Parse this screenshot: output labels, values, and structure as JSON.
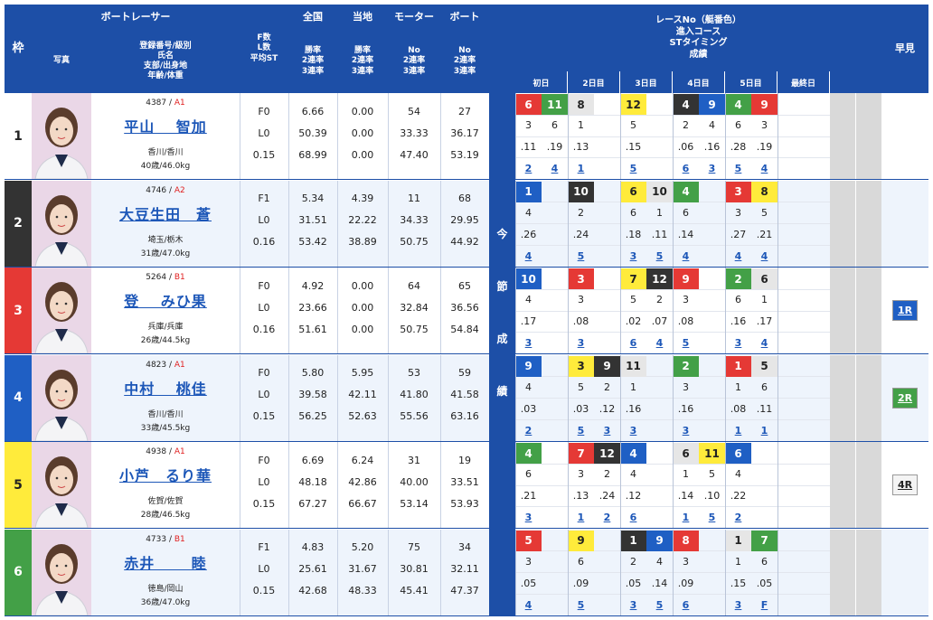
{
  "headers": {
    "waku": "枠",
    "racer": "ボートレーサー",
    "photo": "写真",
    "info": [
      "登録番号/級別",
      "氏名",
      "支部/出身地",
      "年齢/体重"
    ],
    "fl": [
      "F数",
      "L数",
      "平均ST"
    ],
    "zenkoku": "全国",
    "touchi": "当地",
    "motor": "モーター",
    "boat": "ボート",
    "rates": [
      "勝率",
      "2連率",
      "3連率"
    ],
    "mrates": [
      "No",
      "2連率",
      "3連率"
    ],
    "race": [
      "レースNo（艇番色）",
      "進入コース",
      "STタイミング",
      "成績"
    ],
    "days": [
      "初日",
      "2日目",
      "3日目",
      "4日目",
      "5日目",
      "最終日"
    ],
    "hayami": "早見",
    "konsetsu": [
      "今",
      "節",
      "成",
      "績"
    ]
  },
  "colors": {
    "w1": "#ffffff",
    "w2": "#333333",
    "w3": "#e53935",
    "w4": "#1f5fc4",
    "w5": "#ffeb3b",
    "w6": "#43a047"
  },
  "racers": [
    {
      "waku": "1",
      "reg": "4387",
      "cls": "A1",
      "name": "平山　 智加",
      "branch": "香川/香川",
      "age": "40歳/46.0kg",
      "fl": [
        "F0",
        "L0",
        "0.15"
      ],
      "zen": [
        "6.66",
        "50.39",
        "68.99"
      ],
      "tou": [
        "0.00",
        "0.00",
        "0.00"
      ],
      "mot": [
        "54",
        "33.33",
        "47.40"
      ],
      "boa": [
        "27",
        "36.17",
        "53.19"
      ],
      "races": [
        {
          "r": "6",
          "c": "r"
        },
        {
          "r": "11",
          "c": "g"
        },
        {
          "r": "8",
          "c": "l"
        },
        null,
        {
          "r": "12",
          "c": "y"
        },
        null,
        {
          "r": "4",
          "c": "d"
        },
        {
          "r": "9",
          "c": "b"
        },
        {
          "r": "4",
          "c": "g"
        },
        {
          "r": "9",
          "c": "r"
        },
        null,
        null
      ],
      "crs": [
        "3",
        "6",
        "1",
        "",
        "5",
        "",
        "2",
        "4",
        "6",
        "3",
        "",
        ""
      ],
      "st": [
        ".11",
        ".19",
        ".13",
        "",
        ".15",
        "",
        ".06",
        ".16",
        ".28",
        ".19",
        "",
        ""
      ],
      "res": [
        "2",
        "4",
        "1",
        "",
        "5",
        "",
        "6",
        "3",
        "5",
        "4",
        "",
        ""
      ],
      "hay": ""
    },
    {
      "waku": "2",
      "reg": "4746",
      "cls": "A2",
      "name": "大豆生田　蒼",
      "branch": "埼玉/栃木",
      "age": "31歳/47.0kg",
      "fl": [
        "F1",
        "L0",
        "0.16"
      ],
      "zen": [
        "5.34",
        "31.51",
        "53.42"
      ],
      "tou": [
        "4.39",
        "22.22",
        "38.89"
      ],
      "mot": [
        "11",
        "34.33",
        "50.75"
      ],
      "boa": [
        "68",
        "29.95",
        "44.92"
      ],
      "races": [
        {
          "r": "1",
          "c": "b"
        },
        null,
        {
          "r": "10",
          "c": "d"
        },
        null,
        {
          "r": "6",
          "c": "y"
        },
        {
          "r": "10",
          "c": "l"
        },
        {
          "r": "4",
          "c": "g"
        },
        null,
        {
          "r": "3",
          "c": "r"
        },
        {
          "r": "8",
          "c": "y"
        },
        null,
        null
      ],
      "crs": [
        "4",
        "",
        "2",
        "",
        "6",
        "1",
        "6",
        "",
        "3",
        "5",
        "",
        ""
      ],
      "st": [
        ".26",
        "",
        ".24",
        "",
        ".18",
        ".11",
        ".14",
        "",
        ".27",
        ".21",
        "",
        ""
      ],
      "res": [
        "4",
        "",
        "5",
        "",
        "3",
        "5",
        "4",
        "",
        "4",
        "4",
        "",
        ""
      ],
      "hay": ""
    },
    {
      "waku": "3",
      "reg": "5264",
      "cls": "B1",
      "name": "登　 みひ果",
      "branch": "兵庫/兵庫",
      "age": "26歳/44.5kg",
      "fl": [
        "F0",
        "L0",
        "0.16"
      ],
      "zen": [
        "4.92",
        "23.66",
        "51.61"
      ],
      "tou": [
        "0.00",
        "0.00",
        "0.00"
      ],
      "mot": [
        "64",
        "32.84",
        "50.75"
      ],
      "boa": [
        "65",
        "36.56",
        "54.84"
      ],
      "races": [
        {
          "r": "10",
          "c": "b"
        },
        null,
        {
          "r": "3",
          "c": "r"
        },
        null,
        {
          "r": "7",
          "c": "y"
        },
        {
          "r": "12",
          "c": "d"
        },
        {
          "r": "9",
          "c": "r"
        },
        null,
        {
          "r": "2",
          "c": "g"
        },
        {
          "r": "6",
          "c": "l"
        },
        null,
        null
      ],
      "crs": [
        "4",
        "",
        "3",
        "",
        "5",
        "2",
        "3",
        "",
        "6",
        "1",
        "",
        ""
      ],
      "st": [
        ".17",
        "",
        ".08",
        "",
        ".02",
        ".07",
        ".08",
        "",
        ".16",
        ".17",
        "",
        ""
      ],
      "res": [
        "3",
        "",
        "3",
        "",
        "6",
        "4",
        "5",
        "",
        "3",
        "4",
        "",
        ""
      ],
      "hay": "1R",
      "hayc": "#1f5fc4"
    },
    {
      "waku": "4",
      "reg": "4823",
      "cls": "A1",
      "name": "中村　 桃佳",
      "branch": "香川/香川",
      "age": "33歳/45.5kg",
      "fl": [
        "F0",
        "L0",
        "0.15"
      ],
      "zen": [
        "5.80",
        "39.58",
        "56.25"
      ],
      "tou": [
        "5.95",
        "42.11",
        "52.63"
      ],
      "mot": [
        "53",
        "41.80",
        "55.56"
      ],
      "boa": [
        "59",
        "41.58",
        "63.16"
      ],
      "races": [
        {
          "r": "9",
          "c": "b"
        },
        null,
        {
          "r": "3",
          "c": "y"
        },
        {
          "r": "9",
          "c": "d"
        },
        {
          "r": "11",
          "c": "l"
        },
        null,
        {
          "r": "2",
          "c": "g"
        },
        null,
        {
          "r": "1",
          "c": "r"
        },
        {
          "r": "5",
          "c": "l"
        },
        null,
        null
      ],
      "crs": [
        "4",
        "",
        "5",
        "2",
        "1",
        "",
        "3",
        "",
        "1",
        "6",
        "",
        ""
      ],
      "st": [
        ".03",
        "",
        ".03",
        ".12",
        ".16",
        "",
        ".16",
        "",
        ".08",
        ".11",
        "",
        ""
      ],
      "res": [
        "2",
        "",
        "5",
        "3",
        "3",
        "",
        "3",
        "",
        "1",
        "1",
        "",
        ""
      ],
      "hay": "2R",
      "hayc": "#43a047"
    },
    {
      "waku": "5",
      "reg": "4938",
      "cls": "A1",
      "name": "小芦　るり華",
      "branch": "佐賀/佐賀",
      "age": "28歳/46.5kg",
      "fl": [
        "F0",
        "L0",
        "0.15"
      ],
      "zen": [
        "6.69",
        "48.18",
        "67.27"
      ],
      "tou": [
        "6.24",
        "42.86",
        "66.67"
      ],
      "mot": [
        "31",
        "40.00",
        "53.14"
      ],
      "boa": [
        "19",
        "33.51",
        "53.93"
      ],
      "races": [
        {
          "r": "4",
          "c": "g"
        },
        null,
        {
          "r": "7",
          "c": "r"
        },
        {
          "r": "12",
          "c": "d"
        },
        {
          "r": "4",
          "c": "b"
        },
        null,
        {
          "r": "6",
          "c": "l"
        },
        {
          "r": "11",
          "c": "y"
        },
        {
          "r": "6",
          "c": "b"
        },
        null,
        null,
        null
      ],
      "crs": [
        "6",
        "",
        "3",
        "2",
        "4",
        "",
        "1",
        "5",
        "4",
        "",
        "",
        ""
      ],
      "st": [
        ".21",
        "",
        ".13",
        ".24",
        ".12",
        "",
        ".14",
        ".10",
        ".22",
        "",
        "",
        ""
      ],
      "res": [
        "3",
        "",
        "1",
        "2",
        "6",
        "",
        "1",
        "5",
        "2",
        "",
        "",
        ""
      ],
      "hay": "4R",
      "hayc": "#222222"
    },
    {
      "waku": "6",
      "reg": "4733",
      "cls": "B1",
      "name": "赤井　　 睦",
      "branch": "徳島/岡山",
      "age": "36歳/47.0kg",
      "fl": [
        "F1",
        "L0",
        "0.15"
      ],
      "zen": [
        "4.83",
        "25.61",
        "42.68"
      ],
      "tou": [
        "5.20",
        "31.67",
        "48.33"
      ],
      "mot": [
        "75",
        "30.81",
        "45.41"
      ],
      "boa": [
        "34",
        "32.11",
        "47.37"
      ],
      "races": [
        {
          "r": "5",
          "c": "r"
        },
        null,
        {
          "r": "9",
          "c": "y"
        },
        null,
        {
          "r": "1",
          "c": "d"
        },
        {
          "r": "9",
          "c": "b"
        },
        {
          "r": "8",
          "c": "r"
        },
        null,
        {
          "r": "1",
          "c": "l"
        },
        {
          "r": "7",
          "c": "g"
        },
        null,
        null
      ],
      "crs": [
        "3",
        "",
        "6",
        "",
        "2",
        "4",
        "3",
        "",
        "1",
        "6",
        "",
        ""
      ],
      "st": [
        ".05",
        "",
        ".09",
        "",
        ".05",
        ".14",
        ".09",
        "",
        ".15",
        ".05",
        "",
        ""
      ],
      "res": [
        "4",
        "",
        "5",
        "",
        "3",
        "5",
        "6",
        "",
        "3",
        "F",
        "",
        ""
      ],
      "hay": ""
    }
  ]
}
